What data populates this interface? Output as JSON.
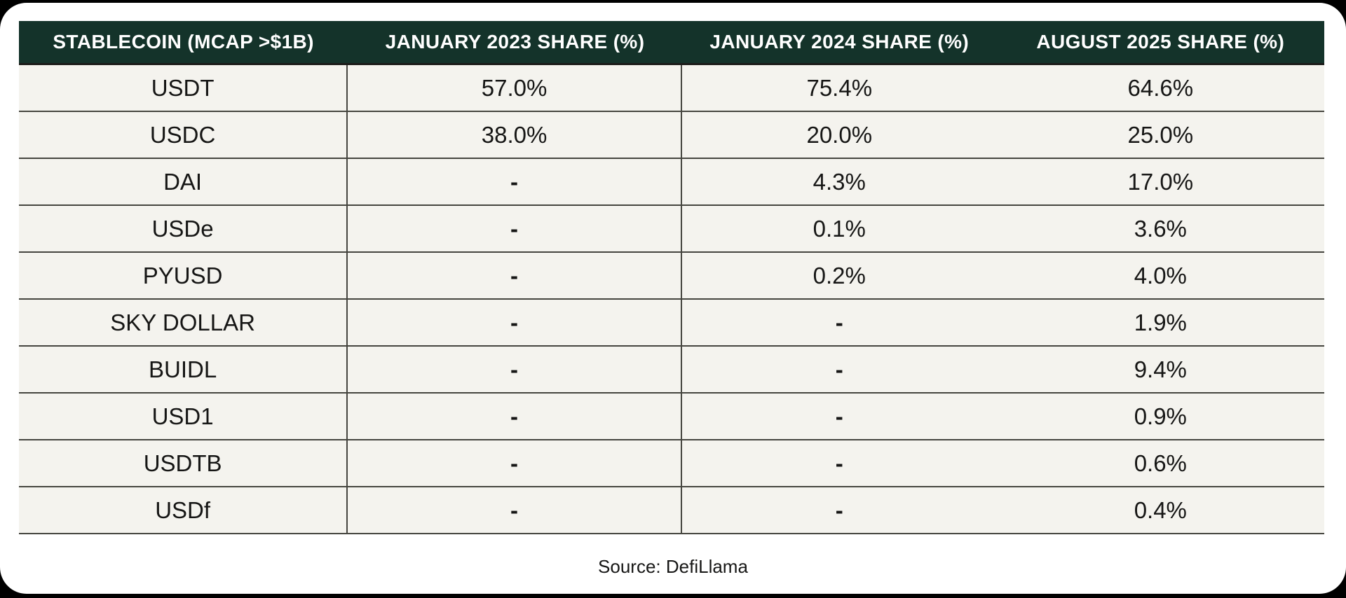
{
  "theme": {
    "canvas_bg": "#000000",
    "page_bg": "#ffffff",
    "header_bg": "#14332a",
    "header_edge": "#1c1c1a",
    "header_text": "#ffffff",
    "row_bg": "#f4f3ee",
    "border_color": "#45453f",
    "body_text": "#161615"
  },
  "table": {
    "columns": [
      "STABLECOIN (MCAP >$1B)",
      "JANUARY 2023 SHARE (%)",
      "JANUARY 2024 SHARE (%)",
      "AUGUST 2025 SHARE (%)"
    ],
    "rows": [
      {
        "name": "USDT",
        "values": [
          "57.0%",
          "75.4%",
          "64.6%"
        ]
      },
      {
        "name": "USDC",
        "values": [
          "38.0%",
          "20.0%",
          "25.0%"
        ]
      },
      {
        "name": "DAI",
        "values": [
          "-",
          "4.3%",
          "17.0%"
        ]
      },
      {
        "name": "USDe",
        "values": [
          "-",
          "0.1%",
          "3.6%"
        ]
      },
      {
        "name": "PYUSD",
        "values": [
          "-",
          "0.2%",
          "4.0%"
        ]
      },
      {
        "name": "SKY DOLLAR",
        "values": [
          "-",
          "-",
          "1.9%"
        ]
      },
      {
        "name": "BUIDL",
        "values": [
          "-",
          "-",
          "9.4%"
        ]
      },
      {
        "name": "USD1",
        "values": [
          "-",
          "-",
          "0.9%"
        ]
      },
      {
        "name": "USDTB",
        "values": [
          "-",
          "-",
          "0.6%"
        ]
      },
      {
        "name": "USDf",
        "values": [
          "-",
          "-",
          "0.4%"
        ]
      }
    ]
  },
  "footer": {
    "source_label": "Source: DefiLlama"
  },
  "chart_data": {
    "type": "table",
    "title": "Stablecoin (MCAP >$1B) market share",
    "categories": [
      "USDT",
      "USDC",
      "DAI",
      "USDe",
      "PYUSD",
      "SKY DOLLAR",
      "BUIDL",
      "USD1",
      "USDTB",
      "USDf"
    ],
    "series": [
      {
        "name": "January 2023 Share (%)",
        "values": [
          57.0,
          38.0,
          null,
          null,
          null,
          null,
          null,
          null,
          null,
          null
        ]
      },
      {
        "name": "January 2024 Share (%)",
        "values": [
          75.4,
          20.0,
          4.3,
          0.1,
          0.2,
          null,
          null,
          null,
          null,
          null
        ]
      },
      {
        "name": "August 2025 Share (%)",
        "values": [
          64.6,
          25.0,
          17.0,
          3.6,
          4.0,
          1.9,
          9.4,
          0.9,
          0.6,
          0.4
        ]
      }
    ],
    "missing_value_marker": "-",
    "legend_position": "none",
    "grid": true,
    "source": "Source: DefiLlama"
  }
}
